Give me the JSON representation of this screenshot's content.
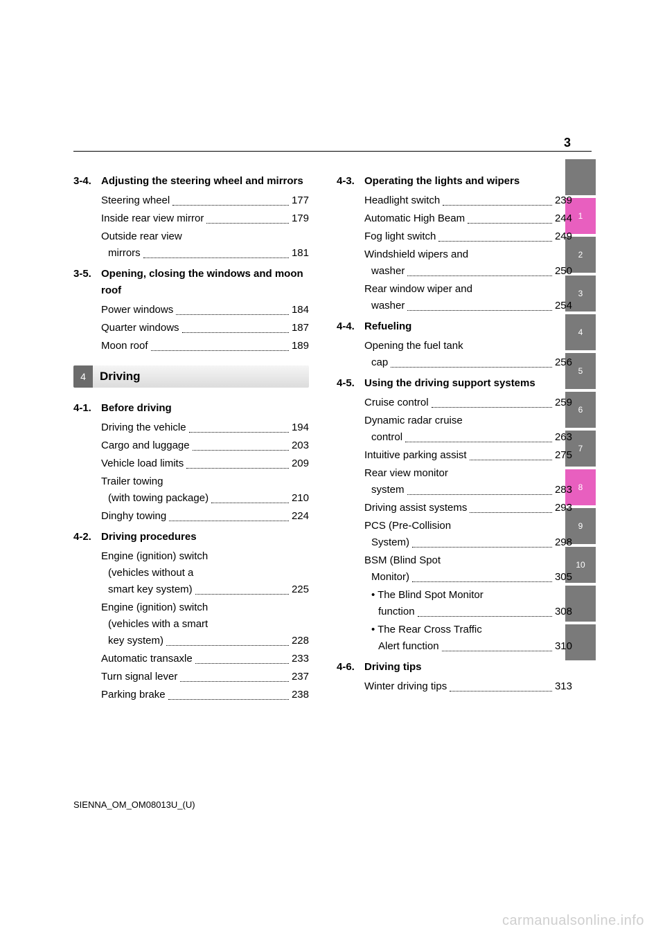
{
  "page_number": "3",
  "footer": "SIENNA_OM_OM08013U_(U)",
  "watermark": "carmanualsonline.info",
  "colors": {
    "tab_gray": "#7a7a7a",
    "tab_highlight": "#e85fbf",
    "rule": "#000000",
    "watermark": "#cfcfcf"
  },
  "chapter": {
    "number": "4",
    "title": "Driving"
  },
  "side_tabs": [
    {
      "label": "",
      "highlight": false
    },
    {
      "label": "1",
      "highlight": true
    },
    {
      "label": "2",
      "highlight": false
    },
    {
      "label": "3",
      "highlight": false
    },
    {
      "label": "4",
      "highlight": false
    },
    {
      "label": "5",
      "highlight": false
    },
    {
      "label": "6",
      "highlight": false
    },
    {
      "label": "7",
      "highlight": false
    },
    {
      "label": "8",
      "highlight": true
    },
    {
      "label": "9",
      "highlight": false
    },
    {
      "label": "10",
      "highlight": false
    },
    {
      "label": "",
      "highlight": false
    },
    {
      "label": "",
      "highlight": false
    }
  ],
  "left": {
    "s34": {
      "num": "3-4.",
      "title": "Adjusting the steering wheel and mirrors",
      "e": [
        {
          "label": "Steering wheel",
          "page": "177"
        },
        {
          "label": "Inside rear view mirror",
          "page": "179"
        },
        {
          "label": "Outside rear view",
          "cont": "mirrors",
          "page": "181"
        }
      ]
    },
    "s35": {
      "num": "3-5.",
      "title": "Opening, closing the windows and moon roof",
      "e": [
        {
          "label": "Power windows",
          "page": "184"
        },
        {
          "label": "Quarter windows",
          "page": "187"
        },
        {
          "label": "Moon roof",
          "page": "189"
        }
      ]
    },
    "s41": {
      "num": "4-1.",
      "title": "Before driving",
      "e": [
        {
          "label": "Driving the vehicle",
          "page": "194"
        },
        {
          "label": "Cargo and luggage",
          "page": "203"
        },
        {
          "label": "Vehicle load limits",
          "page": "209"
        },
        {
          "label": "Trailer towing",
          "cont": "(with towing package)",
          "page": "210"
        },
        {
          "label": "Dinghy towing",
          "page": "224"
        }
      ]
    },
    "s42": {
      "num": "4-2.",
      "title": "Driving procedures",
      "e": [
        {
          "label": "Engine (ignition) switch",
          "cont": "(vehicles without a",
          "cont2": "smart key system)",
          "page": "225"
        },
        {
          "label": "Engine (ignition) switch",
          "cont": "(vehicles with a smart",
          "cont2": "key system)",
          "page": "228"
        },
        {
          "label": "Automatic transaxle",
          "page": "233"
        },
        {
          "label": "Turn signal lever",
          "page": "237"
        },
        {
          "label": "Parking brake",
          "page": "238"
        }
      ]
    }
  },
  "right": {
    "s43": {
      "num": "4-3.",
      "title": "Operating the lights and wipers",
      "e": [
        {
          "label": "Headlight switch",
          "page": "239"
        },
        {
          "label": "Automatic High Beam",
          "page": "244"
        },
        {
          "label": "Fog light switch",
          "page": "249"
        },
        {
          "label": "Windshield wipers and",
          "cont": "washer",
          "page": "250"
        },
        {
          "label": "Rear window wiper and",
          "cont": "washer",
          "page": "254"
        }
      ]
    },
    "s44": {
      "num": "4-4.",
      "title": "Refueling",
      "e": [
        {
          "label": "Opening the fuel tank",
          "cont": "cap",
          "page": "256"
        }
      ]
    },
    "s45": {
      "num": "4-5.",
      "title": "Using the driving support systems",
      "e": [
        {
          "label": "Cruise control",
          "page": "259"
        },
        {
          "label": "Dynamic radar cruise",
          "cont": "control",
          "page": "263"
        },
        {
          "label": "Intuitive parking assist",
          "page": "275"
        },
        {
          "label": "Rear view monitor",
          "cont": "system",
          "page": "283"
        },
        {
          "label": "Driving assist systems",
          "page": "293"
        },
        {
          "label": "PCS (Pre-Collision",
          "cont": "System)",
          "page": "298"
        },
        {
          "label": "BSM (Blind Spot",
          "cont": "Monitor)",
          "page": "305"
        }
      ],
      "sub": [
        {
          "label": "• The Blind Spot Monitor",
          "cont": "function",
          "page": "308"
        },
        {
          "label": "• The Rear Cross Traffic",
          "cont": "Alert function",
          "page": "310"
        }
      ]
    },
    "s46": {
      "num": "4-6.",
      "title": "Driving tips",
      "e": [
        {
          "label": "Winter driving tips",
          "page": "313"
        }
      ]
    }
  }
}
